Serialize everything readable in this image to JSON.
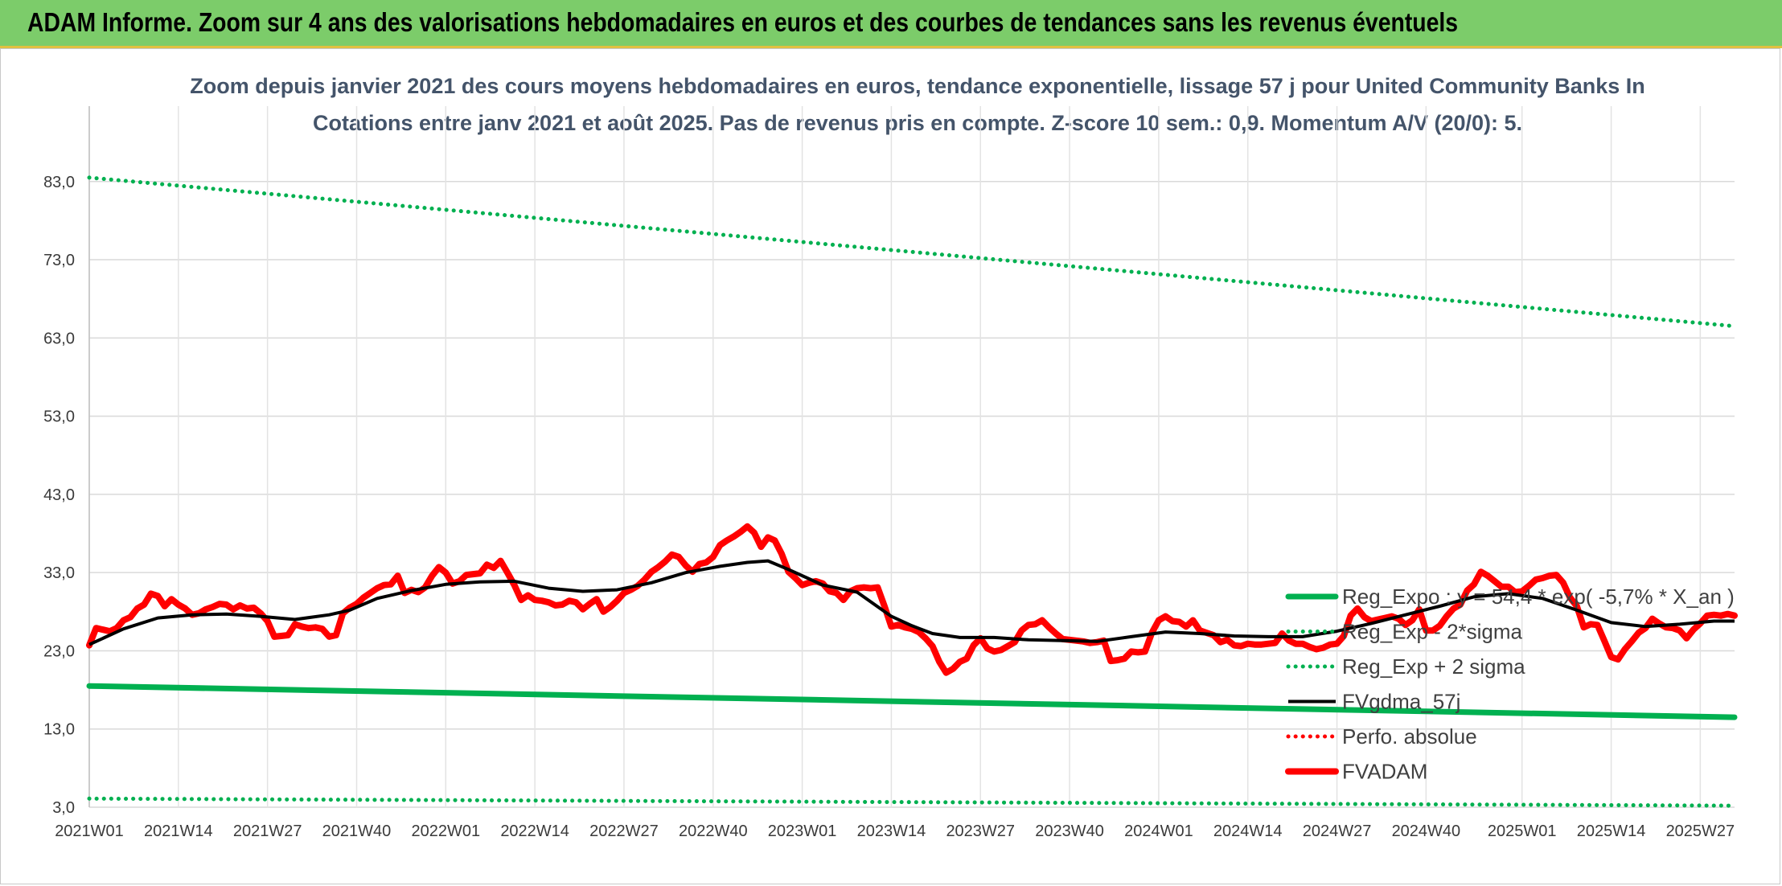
{
  "banner": {
    "title": "ADAM Informe. Zoom sur 4 ans des valorisations hebdomadaires en euros et des courbes de tendances sans les revenus éventuels",
    "color": "#7ccc6a"
  },
  "chart_data": {
    "type": "line",
    "title_line1": "Zoom depuis janvier 2021 des cours moyens hebdomadaires en euros, tendance exponentielle, lissage 57 j pour United Community Banks In",
    "title_line2": "Cotations entre janv 2021 et août 2025. Pas de revenus pris en compte. Z-score 10 sem.: 0,9. Momentum A/V (20/0): 5.",
    "xlabel": "",
    "ylabel": "",
    "ylim": [
      3,
      88
    ],
    "yticks": [
      "83,0",
      "73,0",
      "63,0",
      "53,0",
      "43,0",
      "33,0",
      "23,0",
      "13,0",
      "3,0"
    ],
    "ytick_values": [
      83,
      73,
      63,
      53,
      43,
      33,
      23,
      13,
      3
    ],
    "x_week_range": [
      0,
      240
    ],
    "xticks": [
      "2021W01",
      "2021W14",
      "2021W27",
      "2021W40",
      "2022W01",
      "2022W14",
      "2022W27",
      "2022W40",
      "2023W01",
      "2023W14",
      "2023W27",
      "2023W40",
      "2024W01",
      "2024W14",
      "2024W27",
      "2024W40",
      "2025W01",
      "2025W14",
      "2025W27"
    ],
    "xtick_weeks": [
      0,
      13,
      26,
      39,
      52,
      65,
      78,
      91,
      104,
      117,
      130,
      143,
      156,
      169,
      182,
      195,
      209,
      222,
      235
    ],
    "grid": true,
    "legend_position": "lower-right, inside plot",
    "series": [
      {
        "name": "Reg_Expo : y = 54,4 * exp( -5,7% *  X_an )",
        "color": "#00b050",
        "style": "solid-thick",
        "points": [
          [
            0,
            18.5
          ],
          [
            240,
            14.5
          ]
        ]
      },
      {
        "name": "Reg_Exp - 2*sigma",
        "color": "#00b050",
        "style": "dotted",
        "points": [
          [
            0,
            4.1
          ],
          [
            240,
            3.2
          ]
        ]
      },
      {
        "name": "Reg_Exp + 2 sigma",
        "color": "#00b050",
        "style": "dotted",
        "points": [
          [
            0,
            83.5
          ],
          [
            240,
            64.5
          ]
        ]
      },
      {
        "name": "FVgdma_57j",
        "color": "#000000",
        "style": "solid",
        "points": [
          [
            0,
            23.8
          ],
          [
            5,
            25.8
          ],
          [
            10,
            27.2
          ],
          [
            15,
            27.6
          ],
          [
            20,
            27.7
          ],
          [
            25,
            27.4
          ],
          [
            30,
            27.0
          ],
          [
            35,
            27.6
          ],
          [
            38,
            28.2
          ],
          [
            42,
            29.7
          ],
          [
            47,
            30.7
          ],
          [
            52,
            31.5
          ],
          [
            57,
            31.8
          ],
          [
            62,
            31.9
          ],
          [
            67,
            31.0
          ],
          [
            72,
            30.6
          ],
          [
            77,
            30.8
          ],
          [
            82,
            31.7
          ],
          [
            87,
            33.0
          ],
          [
            92,
            33.8
          ],
          [
            96,
            34.3
          ],
          [
            99,
            34.5
          ],
          [
            102,
            33.4
          ],
          [
            107,
            31.4
          ],
          [
            112,
            30.5
          ],
          [
            117,
            27.4
          ],
          [
            120,
            26.2
          ],
          [
            123,
            25.2
          ],
          [
            127,
            24.7
          ],
          [
            132,
            24.7
          ],
          [
            137,
            24.4
          ],
          [
            142,
            24.3
          ],
          [
            147,
            24.2
          ],
          [
            152,
            24.8
          ],
          [
            157,
            25.4
          ],
          [
            162,
            25.2
          ],
          [
            167,
            24.9
          ],
          [
            172,
            24.8
          ],
          [
            177,
            24.8
          ],
          [
            182,
            25.5
          ],
          [
            187,
            26.5
          ],
          [
            192,
            27.6
          ],
          [
            197,
            28.7
          ],
          [
            202,
            29.9
          ],
          [
            207,
            30.3
          ],
          [
            212,
            29.7
          ],
          [
            217,
            28.2
          ],
          [
            222,
            26.6
          ],
          [
            227,
            26.1
          ],
          [
            232,
            26.4
          ],
          [
            237,
            26.8
          ],
          [
            240,
            26.8
          ]
        ]
      },
      {
        "name": "Perfo. absolue",
        "color": "#ff0000",
        "style": "dotted",
        "points": []
      },
      {
        "name": "FVADAM",
        "color": "#ff0000",
        "style": "solid-thick",
        "points": [
          [
            0,
            23.7
          ],
          [
            1,
            25.9
          ],
          [
            2,
            25.7
          ],
          [
            3,
            25.5
          ],
          [
            4,
            25.9
          ],
          [
            5,
            26.9
          ],
          [
            6,
            27.3
          ],
          [
            7,
            28.4
          ],
          [
            8,
            28.9
          ],
          [
            9,
            30.3
          ],
          [
            10,
            30.0
          ],
          [
            11,
            28.7
          ],
          [
            12,
            29.6
          ],
          [
            13,
            28.9
          ],
          [
            14,
            28.4
          ],
          [
            15,
            27.6
          ],
          [
            16,
            27.8
          ],
          [
            17,
            28.3
          ],
          [
            18,
            28.6
          ],
          [
            19,
            29.0
          ],
          [
            20,
            28.9
          ],
          [
            21,
            28.3
          ],
          [
            22,
            28.8
          ],
          [
            23,
            28.4
          ],
          [
            24,
            28.5
          ],
          [
            25,
            27.8
          ],
          [
            26,
            26.8
          ],
          [
            27,
            24.8
          ],
          [
            28,
            24.9
          ],
          [
            29,
            25.0
          ],
          [
            30,
            26.4
          ],
          [
            31,
            26.1
          ],
          [
            32,
            25.9
          ],
          [
            33,
            26.0
          ],
          [
            34,
            25.8
          ],
          [
            35,
            24.8
          ],
          [
            36,
            25.0
          ],
          [
            37,
            27.8
          ],
          [
            38,
            28.5
          ],
          [
            39,
            29.0
          ],
          [
            40,
            29.8
          ],
          [
            41,
            30.4
          ],
          [
            42,
            31.0
          ],
          [
            43,
            31.4
          ],
          [
            44,
            31.5
          ],
          [
            45,
            32.6
          ],
          [
            46,
            30.4
          ],
          [
            47,
            30.8
          ],
          [
            48,
            30.5
          ],
          [
            49,
            31.1
          ],
          [
            50,
            32.6
          ],
          [
            51,
            33.7
          ],
          [
            52,
            33.0
          ],
          [
            53,
            31.6
          ],
          [
            54,
            31.9
          ],
          [
            55,
            32.7
          ],
          [
            56,
            32.8
          ],
          [
            57,
            32.9
          ],
          [
            58,
            34.0
          ],
          [
            59,
            33.6
          ],
          [
            60,
            34.5
          ],
          [
            61,
            33.0
          ],
          [
            62,
            31.4
          ],
          [
            63,
            29.5
          ],
          [
            64,
            30.1
          ],
          [
            65,
            29.5
          ],
          [
            66,
            29.4
          ],
          [
            67,
            29.2
          ],
          [
            68,
            28.8
          ],
          [
            69,
            28.9
          ],
          [
            70,
            29.4
          ],
          [
            71,
            29.2
          ],
          [
            72,
            28.3
          ],
          [
            73,
            29.0
          ],
          [
            74,
            29.6
          ],
          [
            75,
            28.0
          ],
          [
            76,
            28.6
          ],
          [
            77,
            29.4
          ],
          [
            78,
            30.4
          ],
          [
            79,
            30.8
          ],
          [
            80,
            31.3
          ],
          [
            81,
            32.1
          ],
          [
            82,
            33.1
          ],
          [
            83,
            33.7
          ],
          [
            84,
            34.4
          ],
          [
            85,
            35.3
          ],
          [
            86,
            35.0
          ],
          [
            87,
            33.9
          ],
          [
            88,
            33.1
          ],
          [
            89,
            34.1
          ],
          [
            90,
            34.3
          ],
          [
            91,
            35.0
          ],
          [
            92,
            36.5
          ],
          [
            93,
            37.1
          ],
          [
            94,
            37.6
          ],
          [
            95,
            38.2
          ],
          [
            96,
            38.9
          ],
          [
            97,
            38.1
          ],
          [
            98,
            36.3
          ],
          [
            99,
            37.5
          ],
          [
            100,
            37.1
          ],
          [
            101,
            35.4
          ],
          [
            102,
            33.1
          ],
          [
            103,
            32.3
          ],
          [
            104,
            31.4
          ],
          [
            105,
            31.7
          ],
          [
            106,
            31.9
          ],
          [
            107,
            31.6
          ],
          [
            108,
            30.6
          ],
          [
            109,
            30.4
          ],
          [
            110,
            29.5
          ],
          [
            111,
            30.6
          ],
          [
            112,
            31.0
          ],
          [
            113,
            31.1
          ],
          [
            114,
            31.0
          ],
          [
            115,
            31.1
          ],
          [
            116,
            28.7
          ],
          [
            117,
            26.1
          ],
          [
            118,
            26.3
          ],
          [
            119,
            26.0
          ],
          [
            120,
            25.8
          ],
          [
            121,
            25.4
          ],
          [
            122,
            24.6
          ],
          [
            123,
            23.6
          ],
          [
            124,
            21.6
          ],
          [
            125,
            20.2
          ],
          [
            126,
            20.7
          ],
          [
            127,
            21.6
          ],
          [
            128,
            22.0
          ],
          [
            129,
            23.7
          ],
          [
            130,
            24.6
          ],
          [
            131,
            23.3
          ],
          [
            132,
            22.9
          ],
          [
            133,
            23.1
          ],
          [
            134,
            23.6
          ],
          [
            135,
            24.1
          ],
          [
            136,
            25.6
          ],
          [
            137,
            26.3
          ],
          [
            138,
            26.4
          ],
          [
            139,
            26.9
          ],
          [
            140,
            26.0
          ],
          [
            141,
            25.2
          ],
          [
            142,
            24.5
          ],
          [
            143,
            24.4
          ],
          [
            144,
            24.3
          ],
          [
            145,
            24.2
          ],
          [
            146,
            24.0
          ],
          [
            147,
            24.1
          ],
          [
            148,
            24.3
          ],
          [
            149,
            21.7
          ],
          [
            150,
            21.8
          ],
          [
            151,
            22.0
          ],
          [
            152,
            22.9
          ],
          [
            153,
            22.8
          ],
          [
            154,
            22.9
          ],
          [
            155,
            25.3
          ],
          [
            156,
            26.9
          ],
          [
            157,
            27.4
          ],
          [
            158,
            26.8
          ],
          [
            159,
            26.7
          ],
          [
            160,
            26.1
          ],
          [
            161,
            26.9
          ],
          [
            162,
            25.6
          ],
          [
            163,
            25.3
          ],
          [
            164,
            25.0
          ],
          [
            165,
            24.1
          ],
          [
            166,
            24.4
          ],
          [
            167,
            23.7
          ],
          [
            168,
            23.6
          ],
          [
            169,
            23.9
          ],
          [
            170,
            23.8
          ],
          [
            171,
            23.8
          ],
          [
            172,
            23.9
          ],
          [
            173,
            24.0
          ],
          [
            174,
            25.2
          ],
          [
            175,
            24.3
          ],
          [
            176,
            23.9
          ],
          [
            177,
            23.9
          ],
          [
            178,
            23.5
          ],
          [
            179,
            23.2
          ],
          [
            180,
            23.4
          ],
          [
            181,
            23.8
          ],
          [
            182,
            23.9
          ],
          [
            183,
            24.9
          ],
          [
            184,
            27.5
          ],
          [
            185,
            28.4
          ],
          [
            186,
            27.3
          ],
          [
            187,
            26.8
          ],
          [
            188,
            27.0
          ],
          [
            189,
            27.2
          ],
          [
            190,
            27.4
          ],
          [
            191,
            27.1
          ],
          [
            192,
            26.3
          ],
          [
            193,
            26.9
          ],
          [
            194,
            28.3
          ],
          [
            195,
            25.6
          ],
          [
            196,
            25.6
          ],
          [
            197,
            26.2
          ],
          [
            198,
            27.4
          ],
          [
            199,
            28.4
          ],
          [
            200,
            28.9
          ],
          [
            201,
            30.7
          ],
          [
            202,
            31.5
          ],
          [
            203,
            33.1
          ],
          [
            204,
            32.6
          ],
          [
            205,
            31.9
          ],
          [
            206,
            31.2
          ],
          [
            207,
            31.2
          ],
          [
            208,
            30.5
          ],
          [
            209,
            30.6
          ],
          [
            210,
            31.3
          ],
          [
            211,
            32.1
          ],
          [
            212,
            32.3
          ],
          [
            213,
            32.6
          ],
          [
            214,
            32.7
          ],
          [
            215,
            31.7
          ],
          [
            216,
            29.8
          ],
          [
            217,
            28.7
          ],
          [
            218,
            26.0
          ],
          [
            219,
            26.4
          ],
          [
            220,
            26.3
          ],
          [
            221,
            24.3
          ],
          [
            222,
            22.2
          ],
          [
            223,
            21.9
          ],
          [
            224,
            23.2
          ],
          [
            225,
            24.2
          ],
          [
            226,
            25.3
          ],
          [
            227,
            25.9
          ],
          [
            228,
            27.1
          ],
          [
            229,
            26.5
          ],
          [
            230,
            26.0
          ],
          [
            231,
            25.9
          ],
          [
            232,
            25.6
          ],
          [
            233,
            24.6
          ],
          [
            234,
            25.7
          ],
          [
            235,
            26.5
          ],
          [
            236,
            27.5
          ],
          [
            237,
            27.6
          ],
          [
            238,
            27.5
          ],
          [
            239,
            27.7
          ],
          [
            240,
            27.5
          ]
        ]
      }
    ]
  }
}
